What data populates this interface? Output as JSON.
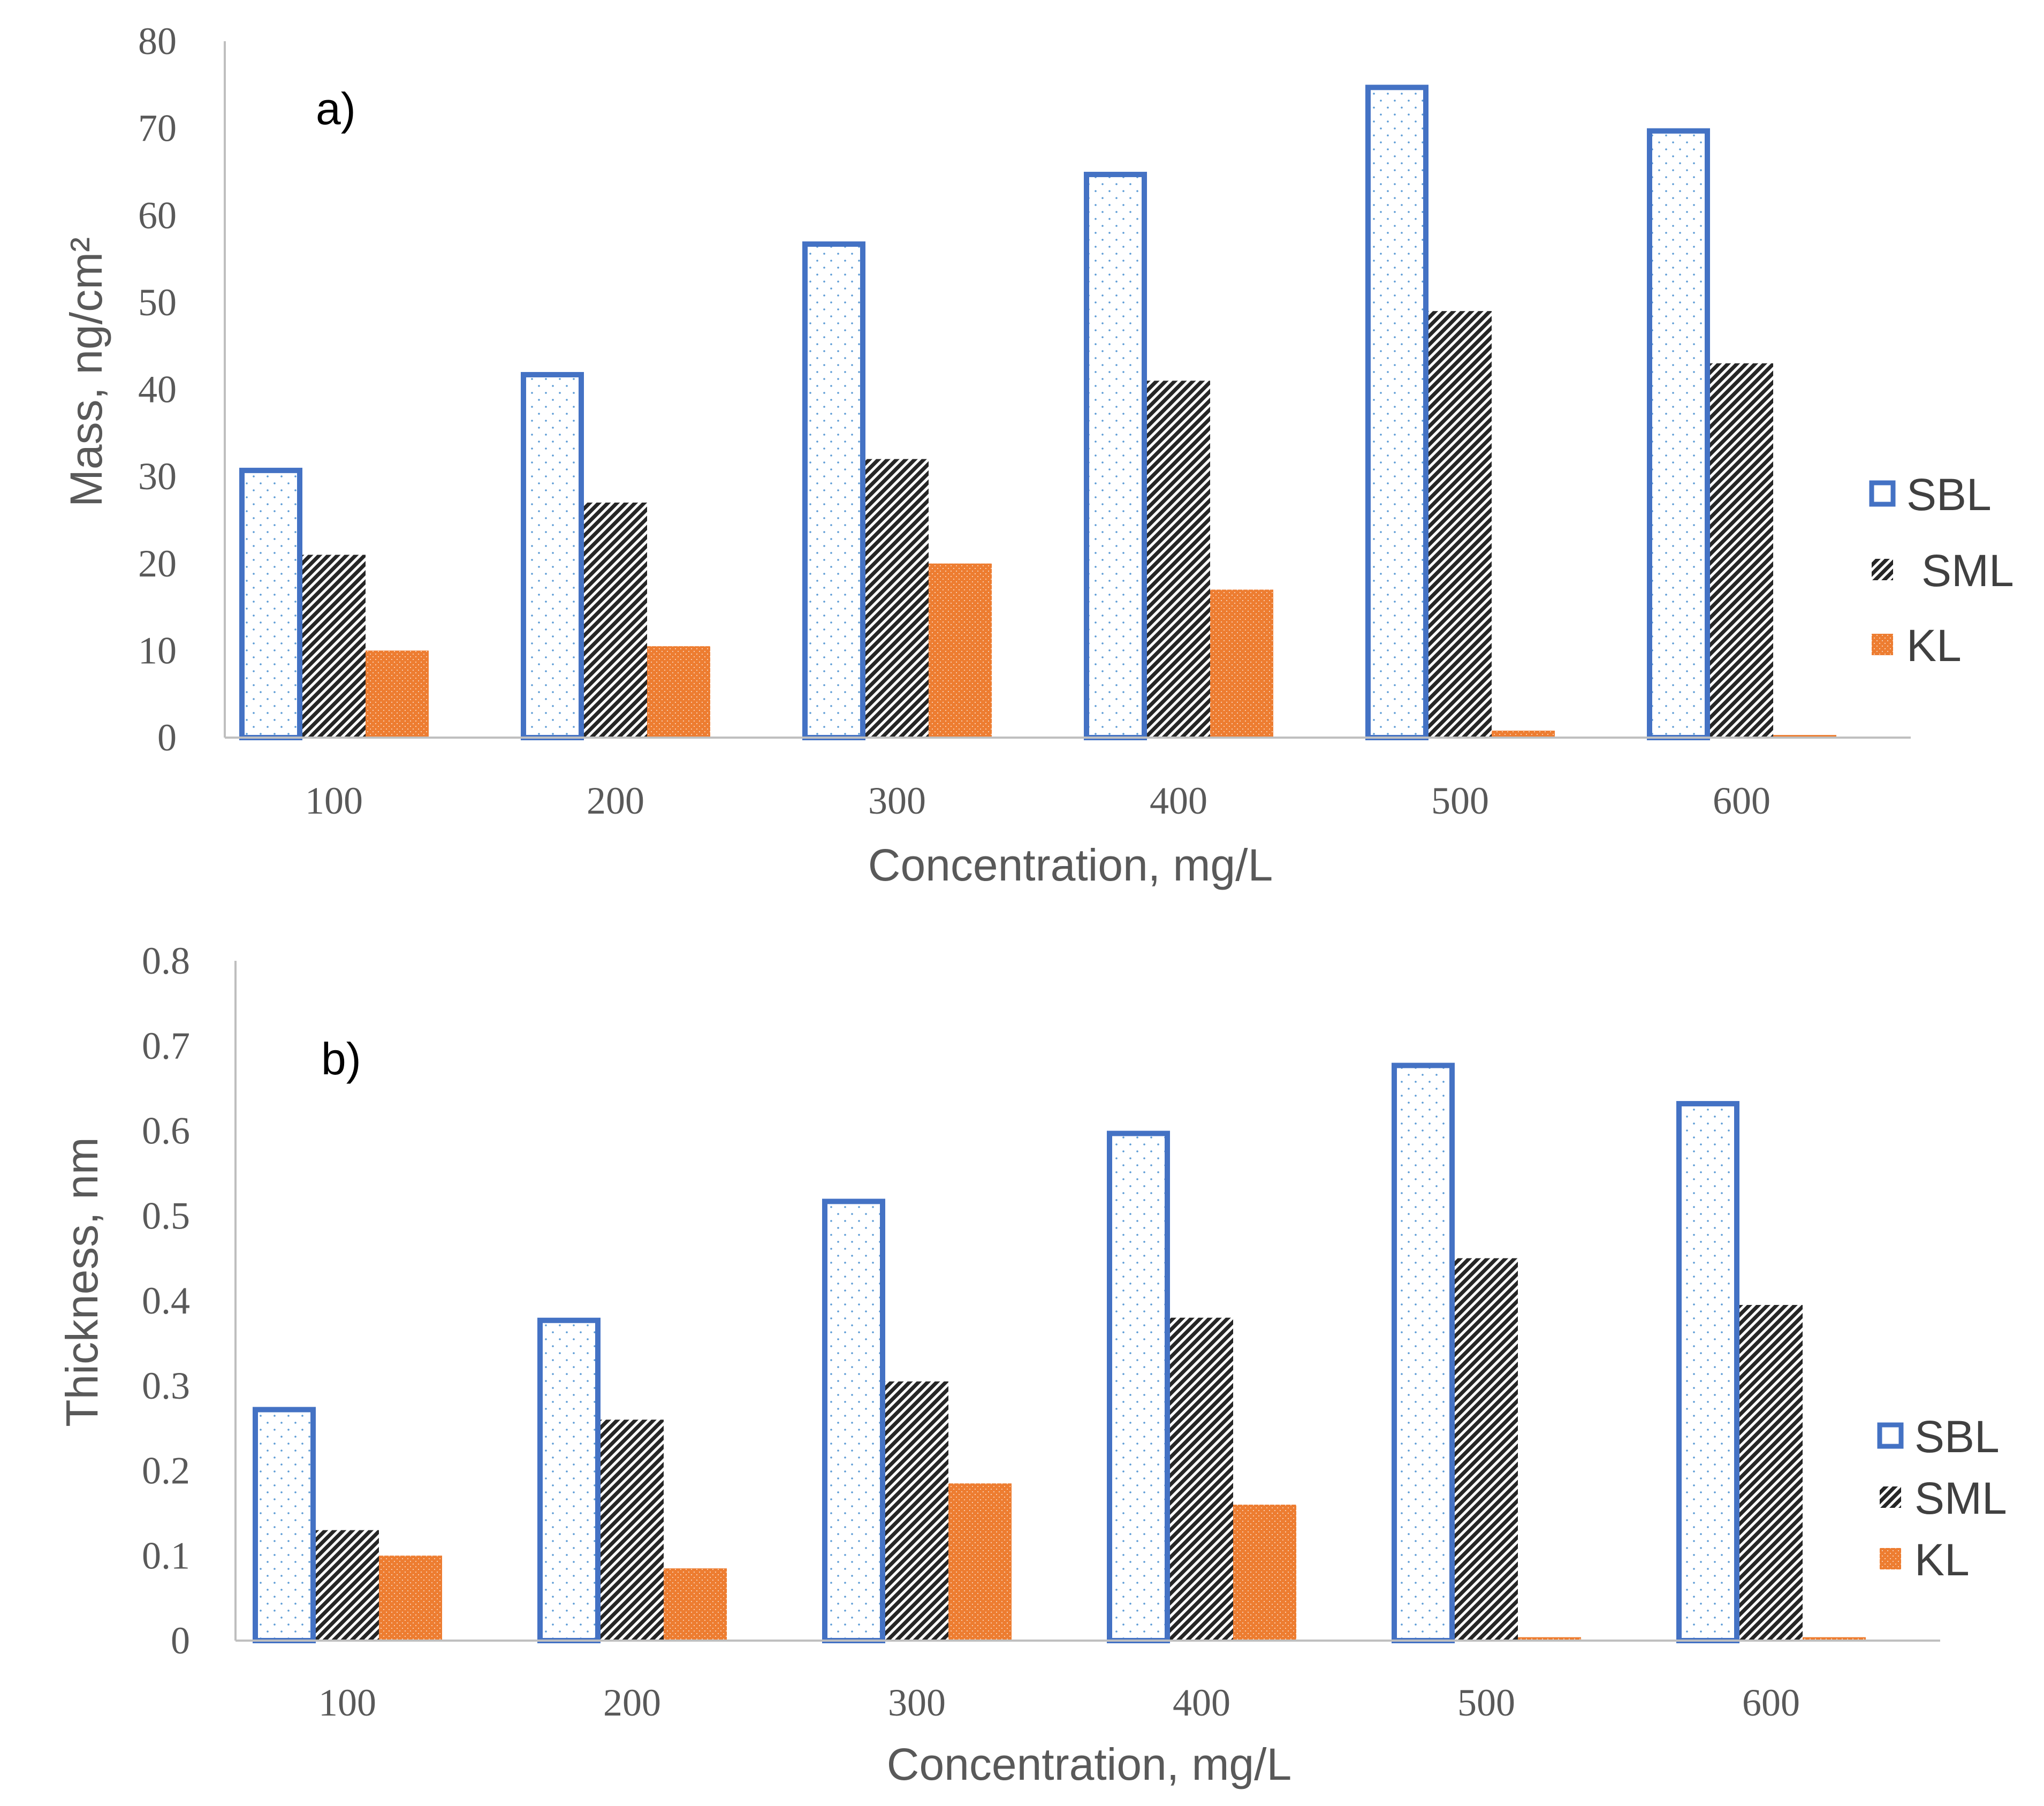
{
  "colors": {
    "sbl_stroke": "#4472C4",
    "sbl_dots": "#5B9BD5",
    "sml": "#262626",
    "kl": "#ED7D31",
    "axis": "#BFBFBF",
    "text": "#595959"
  },
  "chart_data": [
    {
      "type": "bar",
      "panel_label": "a)",
      "title": "",
      "xlabel": "Concentration, mg/L",
      "ylabel": "Mass, ng/cm²",
      "ylim": [
        0,
        80
      ],
      "yticks": [
        "0",
        "10",
        "20",
        "30",
        "40",
        "50",
        "60",
        "70",
        "80"
      ],
      "categories": [
        "100",
        "200",
        "300",
        "400",
        "500",
        "600"
      ],
      "legend_position": "right",
      "series": [
        {
          "name": "SBL",
          "values": [
            31,
            42,
            57,
            65,
            75,
            70
          ]
        },
        {
          "name": "SML",
          "values": [
            21,
            27,
            32,
            41,
            49,
            43
          ]
        },
        {
          "name": "KL",
          "values": [
            10,
            10.5,
            20,
            17,
            0.8,
            0.3
          ]
        }
      ]
    },
    {
      "type": "bar",
      "panel_label": "b)",
      "title": "",
      "xlabel": "Concentration, mg/L",
      "ylabel": "Thickness, nm",
      "ylim": [
        0,
        0.8
      ],
      "yticks": [
        "0",
        "0.1",
        "0.2",
        "0.3",
        "0.4",
        "0.5",
        "0.6",
        "0.7",
        "0.8"
      ],
      "categories": [
        "100",
        "200",
        "300",
        "400",
        "500",
        "600"
      ],
      "legend_position": "right",
      "series": [
        {
          "name": "SBL",
          "values": [
            0.275,
            0.38,
            0.52,
            0.6,
            0.68,
            0.635
          ]
        },
        {
          "name": "SML",
          "values": [
            0.13,
            0.26,
            0.305,
            0.38,
            0.45,
            0.395
          ]
        },
        {
          "name": "KL",
          "values": [
            0.1,
            0.085,
            0.185,
            0.16,
            0.004,
            0.004
          ]
        }
      ]
    }
  ]
}
